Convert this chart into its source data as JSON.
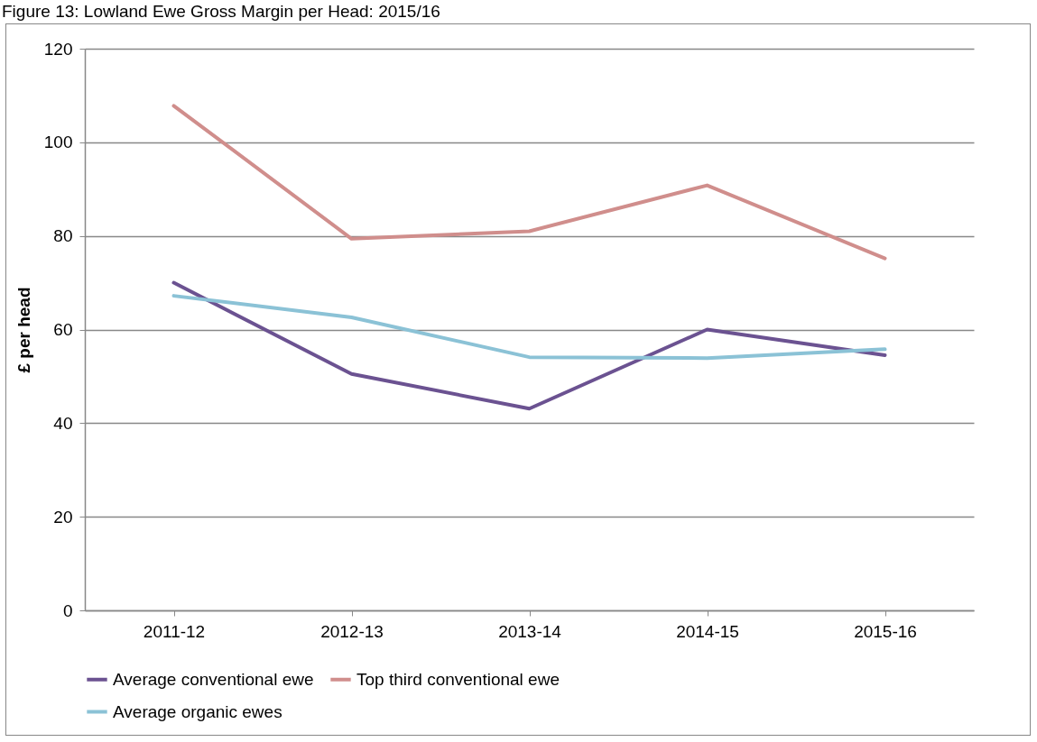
{
  "chart_data": {
    "type": "line",
    "title": "Figure 13: Lowland Ewe Gross Margin per Head: 2015/16",
    "ylabel": "£ per head",
    "categories": [
      "2011-12",
      "2012-13",
      "2013-14",
      "2014-15",
      "2015-16"
    ],
    "series": [
      {
        "name": "Average conventional ewe",
        "color": "#6b5291",
        "values": [
          70.0,
          50.5,
          43.1,
          60.0,
          54.5
        ]
      },
      {
        "name": "Top third conventional ewe",
        "color": "#d08e8c",
        "values": [
          107.8,
          79.4,
          81.0,
          90.8,
          75.2
        ]
      },
      {
        "name": "Average organic ewes",
        "color": "#8bc2d6",
        "values": [
          67.2,
          62.6,
          54.1,
          53.9,
          55.8
        ]
      }
    ],
    "ylim": [
      0,
      120
    ],
    "yticks": [
      0,
      20,
      40,
      60,
      80,
      100,
      120
    ],
    "grid": "y",
    "legend": "bottom",
    "marker": "none"
  }
}
